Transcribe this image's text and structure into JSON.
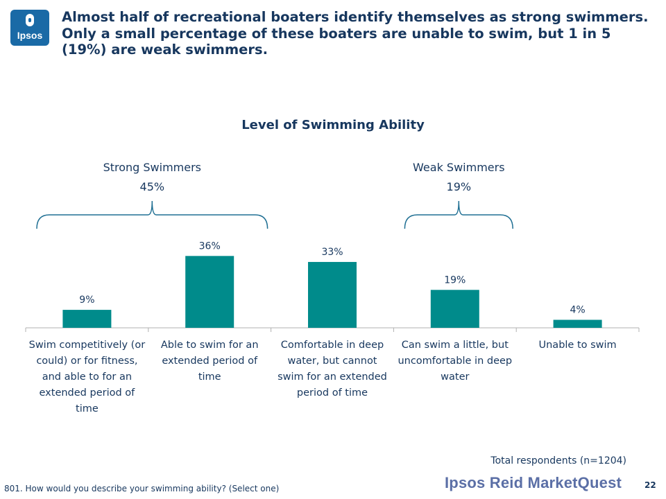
{
  "logo": {
    "text": "Ipsos"
  },
  "headline": "Almost half of recreational boaters identify themselves as strong swimmers. Only a small percentage of these boaters are unable to swim, but 1 in 5 (19%) are weak swimmers.",
  "chart_data": {
    "type": "bar",
    "title": "Level of Swimming Ability",
    "xlabel": "",
    "ylabel": "",
    "ylim": [
      0,
      40
    ],
    "unit": "%",
    "grid": false,
    "categories": [
      "Swim competitively (or could) or for fitness, and able to for an extended period of time",
      "Able to swim for an extended period of time",
      "Comfortable in deep water, but cannot swim for an extended period of time",
      "Can swim a little, but uncomfortable in deep water",
      "Unable to swim"
    ],
    "category_lines": [
      [
        "Swim competitively (or",
        "could) or for fitness,",
        "and able to for an",
        "extended period of",
        "time"
      ],
      [
        "Able to swim for an",
        "extended period of",
        "time"
      ],
      [
        "Comfortable in deep",
        "water, but cannot",
        "swim for an extended",
        "period of time"
      ],
      [
        "Can swim a little, but",
        "uncomfortable in deep",
        "water"
      ],
      [
        "Unable to swim"
      ]
    ],
    "values": [
      9,
      36,
      33,
      19,
      4
    ],
    "value_labels": [
      "9%",
      "36%",
      "33%",
      "19%",
      "4%"
    ],
    "bar_color": "#008b8b",
    "groups": [
      {
        "label": "Strong Swimmers",
        "value": "45%",
        "from": 0,
        "to": 1
      },
      {
        "label": "Weak Swimmers",
        "value": "19%",
        "from": 3,
        "to": 3
      }
    ]
  },
  "respondents": "Total respondents (n=1204)",
  "footnote": "801. How would you describe your swimming ability? (Select one)",
  "brand": "Ipsos Reid MarketQuest",
  "page_number": "22",
  "colors": {
    "title": "#17375e",
    "bracket": "#1f6f93",
    "axis": "#b0b0b0"
  }
}
